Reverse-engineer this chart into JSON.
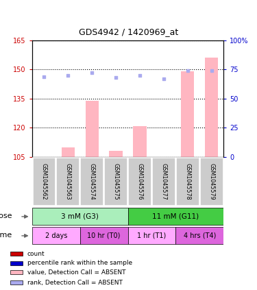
{
  "title": "GDS4942 / 1420969_at",
  "samples": [
    "GSM1045562",
    "GSM1045563",
    "GSM1045574",
    "GSM1045575",
    "GSM1045576",
    "GSM1045577",
    "GSM1045578",
    "GSM1045579"
  ],
  "bar_values": [
    105,
    110,
    134,
    108,
    121,
    105,
    149,
    156
  ],
  "bar_color": "#ffb6c1",
  "dot_values": [
    69,
    70,
    72,
    68,
    70,
    67,
    74,
    74
  ],
  "dot_color_absent": "#aaaaee",
  "ylim_left": [
    105,
    165
  ],
  "ylim_right": [
    0,
    100
  ],
  "yticks_left": [
    105,
    120,
    135,
    150,
    165
  ],
  "yticks_right": [
    0,
    25,
    50,
    75,
    100
  ],
  "ytick_labels_right": [
    "0",
    "25",
    "50",
    "75",
    "100%"
  ],
  "left_tick_color": "#cc0000",
  "right_tick_color": "#0000cc",
  "dose_groups": [
    {
      "label": "3 mM (G3)",
      "start": 0,
      "end": 4,
      "color": "#aaeebb"
    },
    {
      "label": "11 mM (G11)",
      "start": 4,
      "end": 8,
      "color": "#44cc44"
    }
  ],
  "time_groups": [
    {
      "label": "2 days",
      "start": 0,
      "end": 2,
      "color": "#ffaaff"
    },
    {
      "label": "10 hr (T0)",
      "start": 2,
      "end": 4,
      "color": "#dd66dd"
    },
    {
      "label": "1 hr (T1)",
      "start": 4,
      "end": 6,
      "color": "#ffaaff"
    },
    {
      "label": "4 hrs (T4)",
      "start": 6,
      "end": 8,
      "color": "#dd66dd"
    }
  ],
  "legend_colors": [
    "#cc0000",
    "#0000cc",
    "#ffb6c1",
    "#aaaaee"
  ],
  "legend_labels": [
    "count",
    "percentile rank within the sample",
    "value, Detection Call = ABSENT",
    "rank, Detection Call = ABSENT"
  ],
  "background_color": "#ffffff",
  "sample_box_color": "#cccccc"
}
